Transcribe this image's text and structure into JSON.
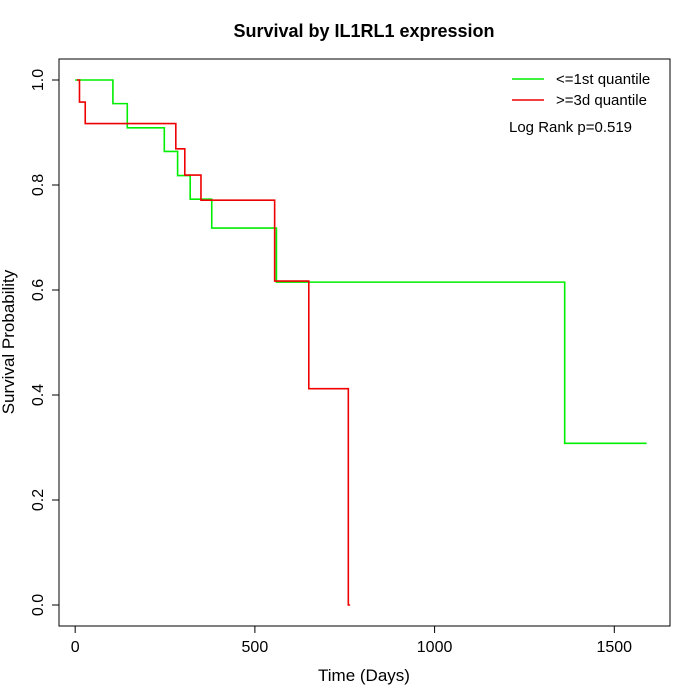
{
  "chart_data": {
    "type": "line",
    "title": "Survival by IL1RL1 expression",
    "xlabel": "Time (Days)",
    "ylabel": "Survival Probability",
    "xlim": [
      -45,
      1655
    ],
    "ylim": [
      -0.04,
      1.04
    ],
    "xticks": [
      0,
      500,
      1000,
      1500
    ],
    "yticks": [
      0.0,
      0.2,
      0.4,
      0.6,
      0.8,
      1.0
    ],
    "xtick_labels": [
      "0",
      "500",
      "1000",
      "1500"
    ],
    "ytick_labels": [
      "0.0",
      "0.2",
      "0.4",
      "0.6",
      "0.8",
      "1.0"
    ],
    "grid": false,
    "legend_position": "top-right",
    "annotation": "Log Rank p=0.519",
    "series": [
      {
        "name": "<=1st quantile",
        "color": "#00ee00",
        "step": true,
        "x": [
          0,
          105,
          145,
          248,
          285,
          320,
          380,
          560,
          1362,
          1590
        ],
        "y": [
          1.0,
          0.955,
          0.909,
          0.864,
          0.818,
          0.773,
          0.718,
          0.615,
          0.308,
          0.308
        ]
      },
      {
        "name": ">=3d quantile",
        "color": "#ee0000",
        "step": true,
        "x": [
          5,
          12,
          28,
          280,
          305,
          350,
          555,
          650,
          760,
          765
        ],
        "y": [
          1.0,
          0.958,
          0.917,
          0.869,
          0.819,
          0.771,
          0.617,
          0.412,
          0.0,
          0.0
        ]
      }
    ]
  }
}
